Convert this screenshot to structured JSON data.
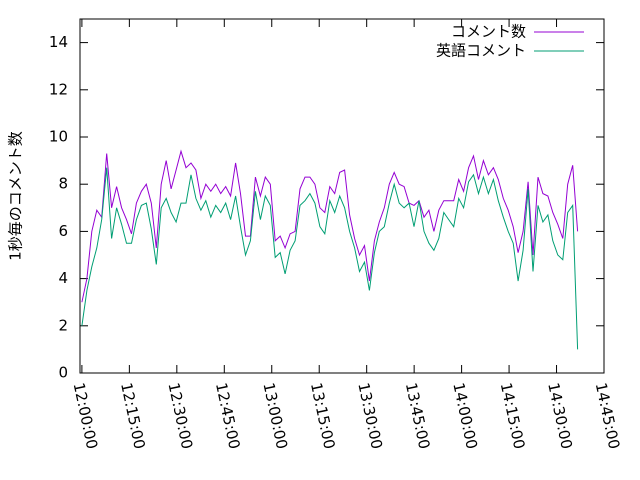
{
  "chart_data": {
    "type": "line",
    "ylabel": "1秒毎のコメント数",
    "x": [
      "12:00:00",
      "12:01:34",
      "12:03:08",
      "12:04:42",
      "12:06:16",
      "12:07:50",
      "12:09:24",
      "12:10:58",
      "12:12:32",
      "12:14:06",
      "12:15:40",
      "12:17:14",
      "12:18:48",
      "12:20:22",
      "12:21:56",
      "12:23:30",
      "12:25:04",
      "12:26:38",
      "12:28:12",
      "12:29:46",
      "12:31:20",
      "12:32:54",
      "12:34:28",
      "12:36:02",
      "12:37:36",
      "12:39:10",
      "12:40:44",
      "12:42:18",
      "12:43:52",
      "12:45:26",
      "12:47:00",
      "12:48:34",
      "12:50:08",
      "12:51:42",
      "12:53:16",
      "12:54:50",
      "12:56:24",
      "12:57:58",
      "12:59:32",
      "13:01:06",
      "13:02:40",
      "13:04:14",
      "13:05:48",
      "13:07:22",
      "13:08:56",
      "13:10:30",
      "13:12:04",
      "13:13:38",
      "13:15:12",
      "13:16:46",
      "13:18:20",
      "13:19:54",
      "13:21:28",
      "13:23:02",
      "13:24:36",
      "13:26:10",
      "13:27:44",
      "13:29:18",
      "13:30:52",
      "13:32:26",
      "13:34:00",
      "13:35:34",
      "13:37:08",
      "13:38:42",
      "13:40:16",
      "13:41:50",
      "13:43:24",
      "13:44:58",
      "13:46:32",
      "13:48:06",
      "13:49:40",
      "13:51:14",
      "13:52:48",
      "13:54:22",
      "13:55:56",
      "13:57:30",
      "13:59:04",
      "14:00:38",
      "14:02:12",
      "14:03:46",
      "14:05:20",
      "14:06:54",
      "14:08:28",
      "14:10:02",
      "14:11:36",
      "14:13:10",
      "14:14:44",
      "14:16:18",
      "14:17:52",
      "14:19:26",
      "14:21:00",
      "14:22:34",
      "14:24:08",
      "14:25:42",
      "14:27:16",
      "14:28:50",
      "14:30:24",
      "14:31:58",
      "14:33:32",
      "14:35:06",
      "14:36:40"
    ],
    "series": [
      {
        "name": "コメント数",
        "color": "#9400d3",
        "values": [
          3.0,
          4.0,
          6.0,
          6.9,
          6.6,
          9.3,
          7.0,
          7.9,
          7.0,
          6.5,
          5.9,
          7.2,
          7.7,
          8.0,
          7.2,
          5.3,
          8.0,
          9.0,
          7.8,
          8.6,
          9.4,
          8.7,
          8.9,
          8.6,
          7.4,
          8.0,
          7.7,
          8.0,
          7.6,
          7.9,
          7.5,
          8.9,
          7.6,
          5.8,
          5.8,
          8.3,
          7.5,
          8.3,
          8.0,
          5.6,
          5.8,
          5.3,
          5.9,
          6.0,
          7.8,
          8.3,
          8.3,
          8.0,
          7.0,
          6.8,
          7.9,
          7.6,
          8.5,
          8.6,
          6.7,
          5.7,
          5.0,
          5.4,
          3.9,
          5.6,
          6.4,
          7.0,
          8.0,
          8.5,
          8.0,
          7.9,
          7.2,
          7.1,
          7.3,
          6.6,
          6.9,
          6.0,
          6.9,
          7.3,
          7.3,
          7.3,
          8.2,
          7.7,
          8.7,
          9.2,
          8.2,
          9.0,
          8.4,
          8.7,
          8.2,
          7.4,
          6.9,
          6.2,
          5.1,
          6.0,
          8.1,
          5.0,
          8.3,
          7.6,
          7.5,
          6.8,
          6.3,
          5.7,
          8.0,
          8.8,
          6.0
        ]
      },
      {
        "name": "英語コメント",
        "color": "#009e73",
        "values": [
          2.0,
          3.5,
          4.5,
          5.3,
          6.5,
          8.7,
          5.7,
          7.0,
          6.3,
          5.5,
          5.5,
          6.5,
          7.1,
          7.2,
          6.1,
          4.6,
          7.0,
          7.4,
          6.8,
          6.4,
          7.2,
          7.2,
          8.4,
          7.4,
          6.9,
          7.3,
          6.6,
          7.1,
          6.8,
          7.2,
          6.5,
          7.5,
          6.2,
          5.0,
          5.6,
          7.7,
          6.5,
          7.5,
          7.1,
          4.9,
          5.1,
          4.2,
          5.2,
          5.6,
          7.1,
          7.3,
          7.6,
          7.2,
          6.2,
          5.9,
          7.3,
          6.8,
          7.5,
          7.0,
          6.0,
          5.3,
          4.3,
          4.7,
          3.5,
          5.1,
          6.0,
          6.2,
          7.2,
          8.0,
          7.2,
          7.0,
          7.2,
          6.2,
          7.3,
          6.0,
          5.5,
          5.2,
          5.7,
          6.8,
          6.5,
          6.2,
          7.4,
          7.0,
          8.1,
          8.4,
          7.6,
          8.3,
          7.6,
          8.2,
          7.3,
          6.6,
          6.0,
          5.5,
          3.9,
          5.2,
          7.8,
          4.3,
          7.1,
          6.4,
          6.7,
          5.6,
          5.0,
          4.8,
          6.8,
          7.1,
          1.0
        ]
      }
    ],
    "xlim": [
      "11:59:24",
      "14:45:00"
    ],
    "xticks": [
      "12:00:00",
      "12:15:00",
      "12:30:00",
      "12:45:00",
      "13:00:00",
      "13:15:00",
      "13:30:00",
      "13:45:00",
      "14:00:00",
      "14:15:00",
      "14:30:00",
      "14:45:00"
    ],
    "ylim": [
      0,
      15
    ],
    "yticks": [
      0,
      2,
      4,
      6,
      8,
      10,
      12,
      14
    ],
    "legend": "top-right"
  }
}
